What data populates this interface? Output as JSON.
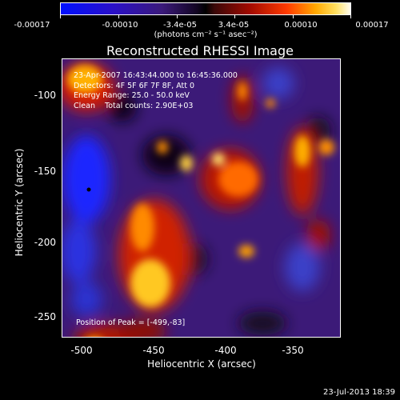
{
  "colorbar": {
    "ticks": [
      "-0.00017",
      "-0.00010",
      "-3.4e-05",
      "3.4e-05",
      "0.00010",
      "0.00017"
    ],
    "units": "(photons cm⁻² s⁻¹ asec⁻²)"
  },
  "title": "Reconstructed RHESSI Image",
  "info_lines": [
    "23-Apr-2007 16:43:44.000 to 16:45:36.000",
    "Detectors: 4F 5F 6F 7F 8F, Att 0",
    "Energy Range: 25.0 - 50.0 keV",
    "Clean    Total counts: 2.90E+03"
  ],
  "peak_label": "Position of Peak = [-499,-83]",
  "x_axis": {
    "label": "Heliocentric X (arcsec)",
    "ticks": [
      "-500",
      "-450",
      "-400",
      "-350"
    ]
  },
  "y_axis": {
    "label": "Heliocentric Y (arcsec)",
    "ticks": [
      "-100",
      "-150",
      "-200",
      "-250"
    ]
  },
  "footer_date": "23-Jul-2013 18:39",
  "colors": {
    "background": "#000000",
    "text": "#ffffff"
  }
}
